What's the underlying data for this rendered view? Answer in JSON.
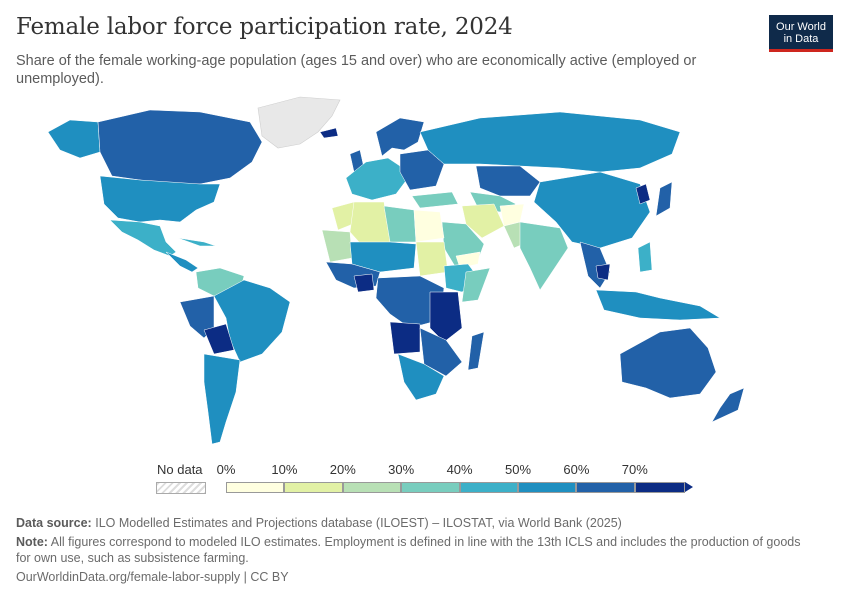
{
  "title": "Female labor force participation rate, 2024",
  "subtitle": "Share of the female working-age population (ages 15 and over) who are economically active (employed or unemployed).",
  "logo": {
    "line1": "Our World",
    "line2": "in Data"
  },
  "legend": {
    "no_data_label": "No data",
    "ticks": [
      "0%",
      "10%",
      "20%",
      "30%",
      "40%",
      "50%",
      "60%",
      "70%"
    ],
    "bin_colors": [
      "#ffffe0",
      "#e2f1a5",
      "#b8e0b5",
      "#78cdbe",
      "#3cb0c8",
      "#1f8fc0",
      "#2261a8",
      "#0c2c84"
    ]
  },
  "map_colors": {
    "land_default": "#1f8fc0",
    "no_data": "#e8e8e8",
    "border": "#ffffff"
  },
  "footer": {
    "source_label": "Data source:",
    "source_text": "ILO Modelled Estimates and Projections database (ILOEST) – ILOSTAT, via World Bank (2025)",
    "note_label": "Note:",
    "note_text": "All figures correspond to modeled ILO estimates. Employment is defined in line with the 13th ICLS and includes the production of goods for own use, such as subsistence farming.",
    "credit": "OurWorldinData.org/female-labor-supply | CC BY"
  }
}
